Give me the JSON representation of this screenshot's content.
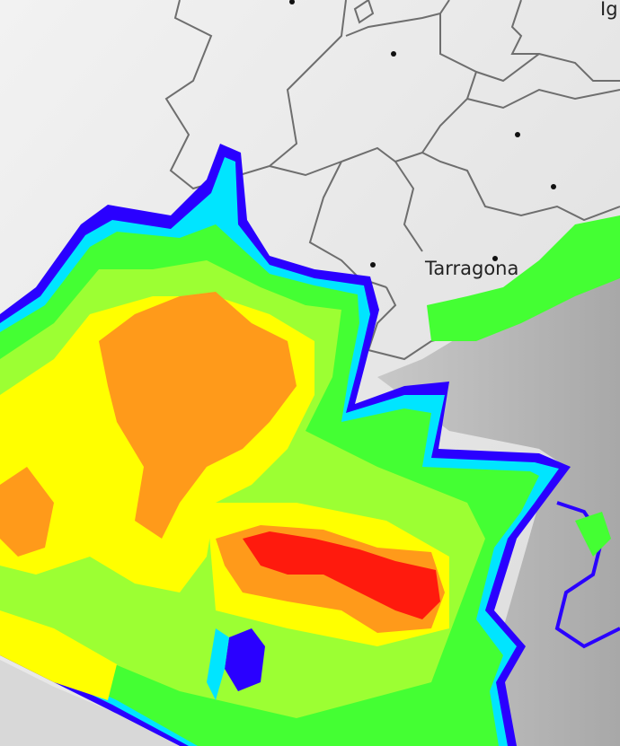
{
  "map": {
    "labels": {
      "tarragona": "Tarragona",
      "top_right": "Ig"
    },
    "colors": {
      "land": "#e6e6e6",
      "sea": "#b8b8b8",
      "border": "#6e6e6e",
      "rain_blue": "#2a00ff",
      "rain_cyan": "#00e5ff",
      "rain_green": "#44ff33",
      "rain_lightgreen": "#9cff33",
      "rain_yellow": "#ffff00",
      "rain_orange": "#ff9a1a",
      "rain_red": "#ff1a0d"
    },
    "layers": [
      "basemap",
      "regional-borders",
      "radar-reflectivity",
      "city-markers"
    ]
  }
}
